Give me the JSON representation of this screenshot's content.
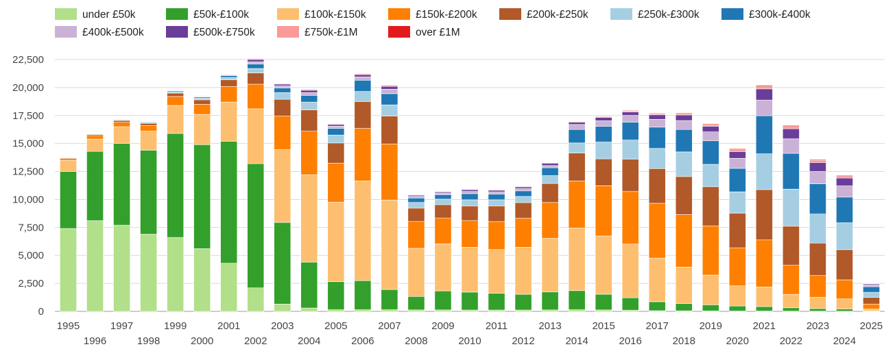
{
  "chart_data": {
    "type": "bar",
    "stacked": true,
    "title": "",
    "xlabel": "",
    "ylabel": "",
    "ylim": [
      0,
      22500
    ],
    "yticks": [
      0,
      2500,
      5000,
      7500,
      10000,
      12500,
      15000,
      17500,
      20000,
      22500
    ],
    "ytick_labels": [
      "0",
      "2,500",
      "5,000",
      "7,500",
      "10,000",
      "12,500",
      "15,000",
      "17,500",
      "20,000",
      "22,500"
    ],
    "grid": true,
    "legend_position": "top",
    "categories": [
      "1995",
      "1996",
      "1997",
      "1998",
      "1999",
      "2000",
      "2001",
      "2002",
      "2003",
      "2004",
      "2005",
      "2006",
      "2007",
      "2008",
      "2009",
      "2010",
      "2011",
      "2012",
      "2013",
      "2014",
      "2015",
      "2016",
      "2017",
      "2018",
      "2019",
      "2020",
      "2021",
      "2022",
      "2023",
      "2024",
      "2025"
    ],
    "series": [
      {
        "name": "under £50k",
        "color": "#b2df8a",
        "values": [
          7400,
          8100,
          7700,
          6900,
          6600,
          5600,
          4300,
          2100,
          650,
          300,
          150,
          150,
          150,
          130,
          130,
          120,
          120,
          120,
          130,
          150,
          130,
          110,
          60,
          50,
          40,
          30,
          30,
          20,
          20,
          15,
          5
        ]
      },
      {
        "name": "£50k-£100k",
        "color": "#33a02c",
        "values": [
          5100,
          6200,
          7300,
          7500,
          9300,
          9300,
          10900,
          11100,
          7300,
          4100,
          2500,
          2600,
          1800,
          1200,
          1700,
          1600,
          1500,
          1400,
          1600,
          1700,
          1400,
          1100,
          800,
          650,
          550,
          450,
          400,
          300,
          230,
          200,
          50
        ]
      },
      {
        "name": "£100k-£150k",
        "color": "#fdbf6f",
        "values": [
          1000,
          1100,
          1500,
          1700,
          2500,
          2700,
          3500,
          4900,
          6500,
          7800,
          7100,
          8900,
          8000,
          4300,
          4200,
          4000,
          3900,
          4200,
          4800,
          5600,
          5200,
          4800,
          3900,
          3250,
          2650,
          1800,
          1750,
          1200,
          1000,
          900,
          150
        ]
      },
      {
        "name": "£150k-£200k",
        "color": "#ff7f00",
        "values": [
          150,
          300,
          400,
          500,
          800,
          900,
          1400,
          2200,
          3000,
          3900,
          3500,
          4700,
          5000,
          2400,
          2300,
          2400,
          2500,
          2600,
          3200,
          4200,
          4500,
          4700,
          4900,
          4700,
          4400,
          3400,
          4200,
          2600,
          1950,
          1700,
          450
        ]
      },
      {
        "name": "£200k-£250k",
        "color": "#b15928",
        "values": [
          60,
          100,
          150,
          200,
          300,
          400,
          600,
          1000,
          1500,
          1900,
          1800,
          2400,
          2500,
          1200,
          1200,
          1300,
          1400,
          1400,
          1700,
          2500,
          2400,
          2900,
          3100,
          3400,
          3500,
          3100,
          4500,
          3500,
          2900,
          2700,
          600
        ]
      },
      {
        "name": "£250k-£300k",
        "color": "#a6cee3",
        "values": [
          20,
          40,
          60,
          70,
          120,
          150,
          200,
          400,
          600,
          700,
          700,
          900,
          1000,
          500,
          500,
          550,
          550,
          550,
          700,
          900,
          1500,
          1700,
          1800,
          2200,
          2000,
          1900,
          3200,
          3300,
          2600,
          2400,
          450
        ]
      },
      {
        "name": "£300k-£400k",
        "color": "#1f78b4",
        "values": [
          20,
          30,
          40,
          50,
          80,
          100,
          150,
          400,
          400,
          600,
          600,
          1000,
          1000,
          400,
          400,
          550,
          500,
          500,
          700,
          1200,
          1400,
          1600,
          1900,
          2000,
          2100,
          2100,
          3400,
          3200,
          2700,
          2300,
          500
        ]
      },
      {
        "name": "£400k-£500k",
        "color": "#cab2d6",
        "values": [
          10,
          15,
          20,
          25,
          40,
          50,
          60,
          200,
          200,
          250,
          200,
          300,
          400,
          150,
          150,
          200,
          200,
          200,
          200,
          450,
          500,
          600,
          700,
          800,
          800,
          900,
          1400,
          1300,
          1100,
          1000,
          150
        ]
      },
      {
        "name": "£500k-£750k",
        "color": "#6a3d9a",
        "values": [
          5,
          10,
          15,
          20,
          30,
          40,
          50,
          200,
          150,
          200,
          150,
          200,
          250,
          100,
          100,
          150,
          150,
          150,
          200,
          200,
          300,
          300,
          400,
          500,
          500,
          600,
          1000,
          900,
          800,
          700,
          100
        ]
      },
      {
        "name": "£750k-£1M",
        "color": "#fb9a99",
        "values": [
          3,
          5,
          8,
          10,
          15,
          20,
          25,
          80,
          60,
          80,
          60,
          80,
          100,
          40,
          40,
          50,
          50,
          50,
          60,
          70,
          80,
          90,
          110,
          130,
          150,
          170,
          200,
          200,
          180,
          150,
          30
        ]
      },
      {
        "name": "over £1M",
        "color": "#e31a1c",
        "values": [
          2,
          3,
          4,
          5,
          8,
          10,
          10,
          40,
          30,
          40,
          30,
          40,
          40,
          20,
          20,
          30,
          30,
          30,
          30,
          30,
          40,
          50,
          50,
          60,
          70,
          80,
          100,
          90,
          80,
          80,
          15
        ]
      }
    ]
  }
}
